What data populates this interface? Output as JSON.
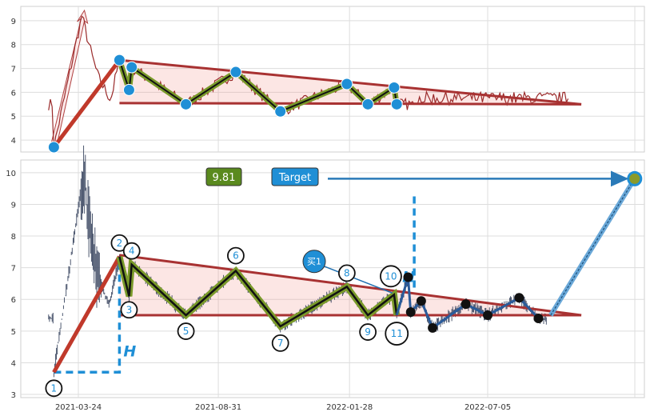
{
  "chart_data": [
    {
      "type": "line",
      "panel": "top",
      "grid": true,
      "ylim": [
        3.5,
        9.6
      ],
      "y_ticks": [
        "4",
        "5",
        "6",
        "7",
        "8",
        "9"
      ],
      "pattern_points": [
        {
          "x": "2021-02-24",
          "y": 3.7
        },
        {
          "x": "2021-05-10",
          "y": 7.35
        },
        {
          "x": "2021-05-21",
          "y": 6.1
        },
        {
          "x": "2021-05-24",
          "y": 7.05
        },
        {
          "x": "2021-07-25",
          "y": 5.5
        },
        {
          "x": "2021-09-20",
          "y": 6.85
        },
        {
          "x": "2021-11-10",
          "y": 5.2
        },
        {
          "x": "2022-01-25",
          "y": 6.35
        },
        {
          "x": "2022-02-18",
          "y": 5.5
        },
        {
          "x": "2022-03-20",
          "y": 6.2
        },
        {
          "x": "2022-03-23",
          "y": 5.5
        }
      ],
      "upper_trendline": [
        {
          "x": "2021-05-10",
          "y": 7.35
        },
        {
          "x": "2022-10-20",
          "y": 5.5
        }
      ],
      "lower_trendline": [
        {
          "x": "2021-05-10",
          "y": 5.55
        },
        {
          "x": "2022-10-20",
          "y": 5.5
        }
      ]
    },
    {
      "type": "line",
      "panel": "bottom",
      "grid": true,
      "ylim": [
        2.9,
        10.4
      ],
      "y_ticks": [
        "3",
        "4",
        "5",
        "6",
        "7",
        "8",
        "9",
        "10"
      ],
      "x_ticks": [
        "2021-03-24",
        "2021-08-31",
        "2022-01-28",
        "2022-07-05"
      ],
      "price_badge": "9.81",
      "target_label": "Target",
      "target_value": 9.81,
      "buy_label": "买1",
      "height_label": "H",
      "pattern_points": [
        {
          "label": "1",
          "x": "2021-02-24",
          "y": 3.7
        },
        {
          "label": "2",
          "x": "2021-05-10",
          "y": 7.35
        },
        {
          "label": "3",
          "x": "2021-05-21",
          "y": 6.1
        },
        {
          "label": "4",
          "x": "2021-05-24",
          "y": 7.1
        },
        {
          "label": "5",
          "x": "2021-07-25",
          "y": 5.5
        },
        {
          "label": "6",
          "x": "2021-09-20",
          "y": 6.9
        },
        {
          "label": "7",
          "x": "2021-11-10",
          "y": 5.15
        },
        {
          "label": "8",
          "x": "2022-01-25",
          "y": 6.4
        },
        {
          "label": "9",
          "x": "2022-02-18",
          "y": 5.5
        },
        {
          "label": "10",
          "x": "2022-03-20",
          "y": 6.15
        },
        {
          "label": "11",
          "x": "2022-03-23",
          "y": 5.5
        }
      ],
      "post_breakout_points": [
        {
          "x": "2022-04-05",
          "y": 6.7
        },
        {
          "x": "2022-04-08",
          "y": 5.6
        },
        {
          "x": "2022-04-20",
          "y": 5.95
        },
        {
          "x": "2022-05-03",
          "y": 5.1
        },
        {
          "x": "2022-06-10",
          "y": 5.85
        },
        {
          "x": "2022-07-05",
          "y": 5.5
        },
        {
          "x": "2022-08-10",
          "y": 6.05
        },
        {
          "x": "2022-09-01",
          "y": 5.4
        }
      ],
      "upper_trendline": [
        {
          "x": "2021-05-10",
          "y": 7.4
        },
        {
          "x": "2022-10-20",
          "y": 5.5
        }
      ],
      "lower_trendline": [
        {
          "x": "2021-05-10",
          "y": 5.5
        },
        {
          "x": "2022-10-20",
          "y": 5.5
        }
      ],
      "target_line": [
        {
          "x": "2022-09-15",
          "y": 5.5
        },
        {
          "x": "2022-12-20",
          "y": 9.81
        }
      ]
    }
  ]
}
